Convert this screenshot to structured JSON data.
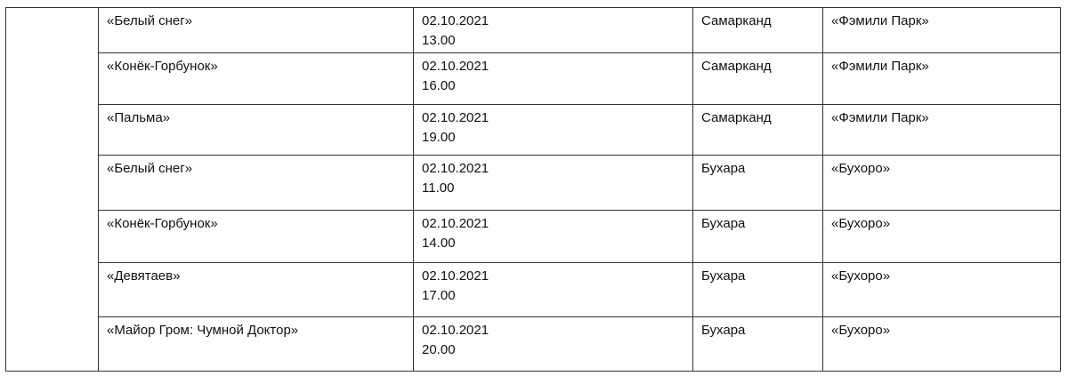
{
  "rows": [
    {
      "title": "«Белый снег»",
      "date": "02.10.2021",
      "time": "13.00",
      "city": "Самарканд",
      "venue": "«Фэмили Парк»"
    },
    {
      "title": "«Конёк-Горбунок»",
      "date": "02.10.2021",
      "time": "16.00",
      "city": "Самарканд",
      "venue": "«Фэмили Парк»"
    },
    {
      "title": "«Пальма»",
      "date": "02.10.2021",
      "time": "19.00",
      "city": "Самарканд",
      "venue": "«Фэмили Парк»"
    },
    {
      "title": "«Белый снег»",
      "date": "02.10.2021",
      "time": "11.00",
      "city": "Бухара",
      "venue": "«Бухоро»"
    },
    {
      "title": "«Конёк-Горбунок»",
      "date": "02.10.2021",
      "time": "14.00",
      "city": "Бухара",
      "venue": "«Бухоро»"
    },
    {
      "title": "«Девятаев»",
      "date": "02.10.2021",
      "time": "17.00",
      "city": "Бухара",
      "venue": "«Бухоро»"
    },
    {
      "title": "«Майор Гром: Чумной Доктор»",
      "date": "02.10.2021",
      "time": "20.00",
      "city": "Бухара",
      "venue": "«Бухоро»"
    }
  ]
}
